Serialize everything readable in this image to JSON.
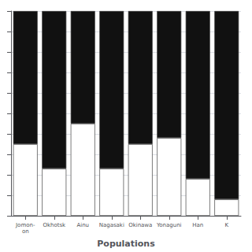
{
  "chart_data": {
    "type": "bar",
    "xlabel": "Populations",
    "categories": [
      "Jomon-\non",
      "Okhotsk",
      "Ainu",
      "Nagasaki",
      "Okinawa",
      "Yonaguni",
      "Han",
      "K"
    ],
    "series": [
      {
        "color": "#ffffff",
        "values": [
          0.35,
          0.23,
          0.45,
          0.23,
          0.35,
          0.38,
          0.18,
          0.08
        ]
      },
      {
        "color": "#111111",
        "values": [
          0.65,
          0.77,
          0.55,
          0.77,
          0.65,
          0.62,
          0.82,
          0.92
        ]
      }
    ],
    "stacked": true,
    "ylim": [
      0,
      1.0
    ],
    "yticks": [
      0.0,
      0.1,
      0.2,
      0.3,
      0.4,
      0.5,
      0.6,
      0.7,
      0.8,
      0.9,
      1.0
    ],
    "grid": true,
    "tick_labels": "x"
  }
}
